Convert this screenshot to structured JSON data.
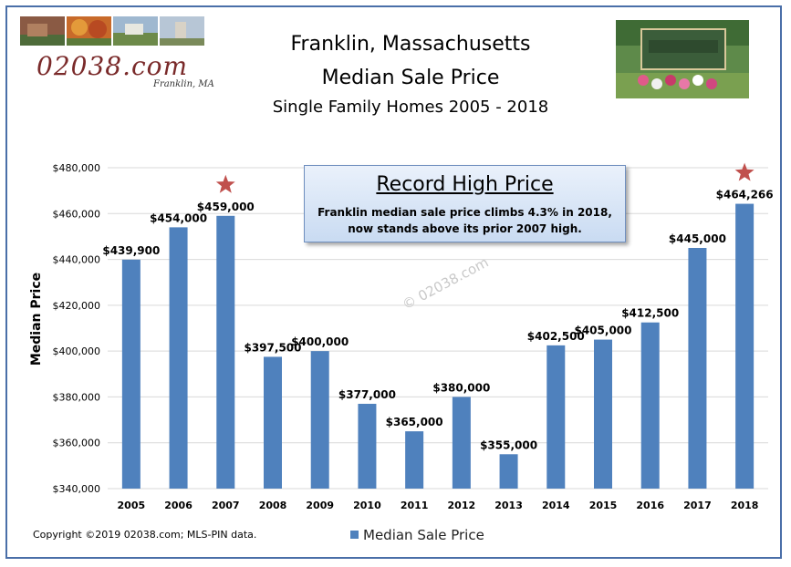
{
  "header": {
    "logo": "02038.com",
    "logo_sub": "Franklin, MA",
    "title_line1": "Franklin, Massachusetts",
    "title_line2": "Median Sale Price",
    "subtitle": "Single Family Homes 2005 - 2018"
  },
  "callout": {
    "title": "Record High Price",
    "text_line1": "Franklin median sale price climbs 4.3% in 2018,",
    "text_line2": "now stands above its prior 2007 high."
  },
  "watermark": "© 02038.com",
  "footer": {
    "copyright": "Copyright ©2019 02038.com; MLS-PIN data."
  },
  "chart_data": {
    "type": "bar",
    "categories": [
      "2005",
      "2006",
      "2007",
      "2008",
      "2009",
      "2010",
      "2011",
      "2012",
      "2013",
      "2014",
      "2015",
      "2016",
      "2017",
      "2018"
    ],
    "series": [
      {
        "name": "Median Sale Price",
        "values": [
          439900,
          454000,
          459000,
          397500,
          400000,
          377000,
          365000,
          380000,
          355000,
          402500,
          405000,
          412500,
          445000,
          464266
        ],
        "data_labels": [
          "$439,900",
          "$454,000",
          "$459,000",
          "$397,500",
          "$400,000",
          "$377,000",
          "$365,000",
          "$380,000",
          "$355,000",
          "$402,500",
          "$405,000",
          "$412,500",
          "$445,000",
          "$464,266"
        ]
      }
    ],
    "ylabel": "Median Price",
    "ylim": [
      340000,
      480000
    ],
    "yticks": [
      340000,
      360000,
      380000,
      400000,
      420000,
      440000,
      460000,
      480000
    ],
    "ytick_labels": [
      "$340,000",
      "$360,000",
      "$380,000",
      "$400,000",
      "$420,000",
      "$440,000",
      "$460,000",
      "$480,000"
    ],
    "grid": true,
    "legend_position": "bottom",
    "bar_color": "#4f81bd",
    "star_color": "#c0504d",
    "starred_categories": [
      "2007",
      "2018"
    ]
  }
}
